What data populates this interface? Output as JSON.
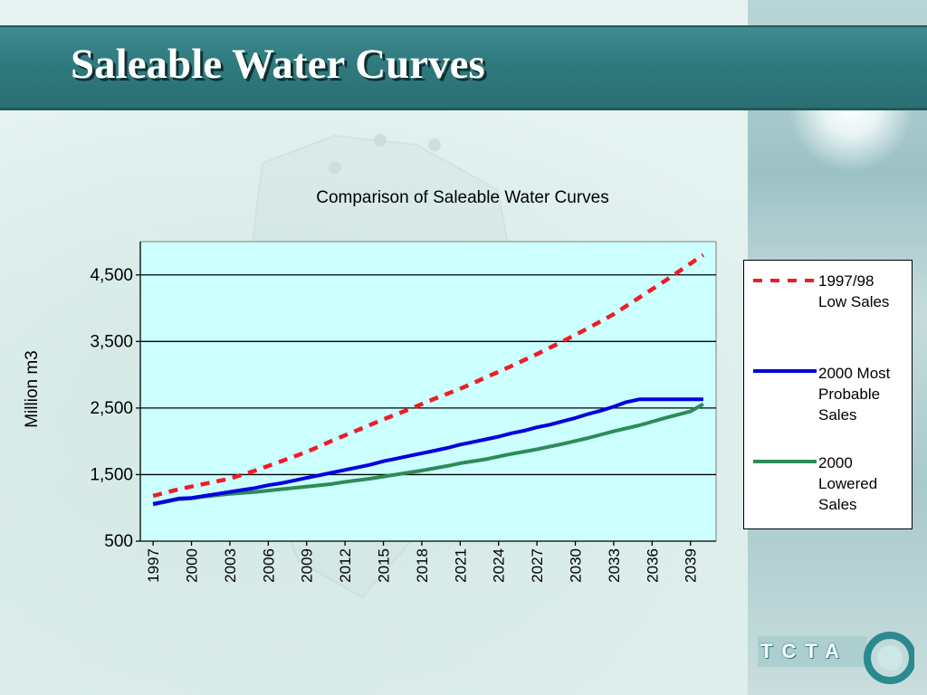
{
  "slide": {
    "title": "Saleable Water Curves",
    "logo_text": "TCTA"
  },
  "chart_data": {
    "type": "line",
    "title": "Comparison of Saleable Water Curves",
    "xlabel": "",
    "ylabel": "Million m3",
    "xlim": [
      1996,
      2041
    ],
    "ylim": [
      500,
      5000
    ],
    "yticks": [
      500,
      1500,
      2500,
      3500,
      4500
    ],
    "ytick_labels": [
      "500",
      "1,500",
      "2,500",
      "3,500",
      "4,500"
    ],
    "xtick_labels": [
      "1997",
      "2000",
      "2003",
      "2006",
      "2009",
      "2012",
      "2015",
      "2018",
      "2021",
      "2024",
      "2027",
      "2030",
      "2033",
      "2036",
      "2039"
    ],
    "grid": "horizontal",
    "plot_background": "#ccffff",
    "legend_placement": "right",
    "series": [
      {
        "name": "1997/98 Low Sales",
        "color": "#ee1c25",
        "style": "dashed",
        "x": [
          1997,
          1999,
          2001,
          2003,
          2005,
          2007,
          2009,
          2011,
          2013,
          2015,
          2017,
          2019,
          2021,
          2023,
          2025,
          2027,
          2029,
          2031,
          2033,
          2035,
          2037,
          2039,
          2040
        ],
        "values": [
          1180,
          1280,
          1360,
          1440,
          1560,
          1700,
          1840,
          2010,
          2170,
          2330,
          2480,
          2640,
          2790,
          2960,
          3130,
          3310,
          3500,
          3700,
          3910,
          4160,
          4410,
          4670,
          4800
        ]
      },
      {
        "name": "2000 Most Probable Sales",
        "color": "#0000dd",
        "style": "solid",
        "x": [
          1997,
          1998,
          1999,
          2000,
          2001,
          2002,
          2003,
          2004,
          2005,
          2006,
          2007,
          2008,
          2009,
          2010,
          2011,
          2012,
          2013,
          2014,
          2015,
          2016,
          2017,
          2018,
          2019,
          2020,
          2021,
          2022,
          2023,
          2024,
          2025,
          2026,
          2027,
          2028,
          2029,
          2030,
          2031,
          2032,
          2033,
          2034,
          2035,
          2036,
          2037,
          2038,
          2039,
          2040
        ],
        "values": [
          1060,
          1100,
          1140,
          1150,
          1180,
          1210,
          1240,
          1270,
          1300,
          1340,
          1370,
          1410,
          1450,
          1490,
          1530,
          1570,
          1610,
          1650,
          1700,
          1740,
          1780,
          1820,
          1860,
          1900,
          1950,
          1990,
          2030,
          2070,
          2120,
          2160,
          2210,
          2250,
          2300,
          2350,
          2410,
          2460,
          2520,
          2590,
          2630,
          2630,
          2630,
          2630,
          2630,
          2630
        ]
      },
      {
        "name": "2000 Lowered Sales",
        "color": "#2e8b57",
        "style": "solid",
        "x": [
          1997,
          1999,
          2000,
          2001,
          2003,
          2005,
          2007,
          2009,
          2011,
          2012,
          2014,
          2016,
          2018,
          2020,
          2021,
          2023,
          2025,
          2027,
          2029,
          2031,
          2033,
          2035,
          2037,
          2039,
          2040
        ],
        "values": [
          1050,
          1130,
          1140,
          1170,
          1210,
          1240,
          1280,
          1320,
          1360,
          1390,
          1440,
          1500,
          1560,
          1630,
          1670,
          1730,
          1810,
          1880,
          1960,
          2050,
          2150,
          2240,
          2350,
          2450,
          2560
        ]
      }
    ]
  }
}
